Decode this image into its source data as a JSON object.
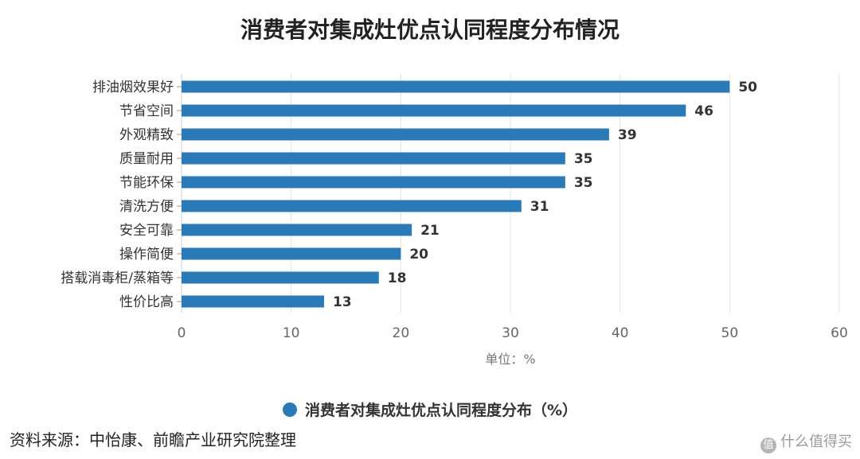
{
  "chart_data": {
    "type": "bar",
    "orientation": "horizontal",
    "title": "消费者对集成灶优点认同程度分布情况",
    "categories": [
      "排油烟效果好",
      "节省空间",
      "外观精致",
      "质量耐用",
      "节能环保",
      "清洗方便",
      "安全可靠",
      "操作简便",
      "搭载消毒柜/蒸箱等",
      "性价比高"
    ],
    "series": [
      {
        "name": "消费者对集成灶优点认同程度分布（%）",
        "values": [
          50,
          46,
          39,
          35,
          35,
          31,
          21,
          20,
          18,
          13
        ]
      }
    ],
    "xlabel": "单位：%",
    "xlim": [
      0,
      60
    ],
    "xticks": [
      0,
      10,
      20,
      30,
      40,
      50,
      60
    ],
    "grid": true,
    "legend_position": "bottom",
    "bar_color": "#2b7ab8"
  },
  "source": "资料来源：中怡康、前瞻产业研究院整理",
  "watermark": "什么值得买",
  "watermark_icon": "值"
}
